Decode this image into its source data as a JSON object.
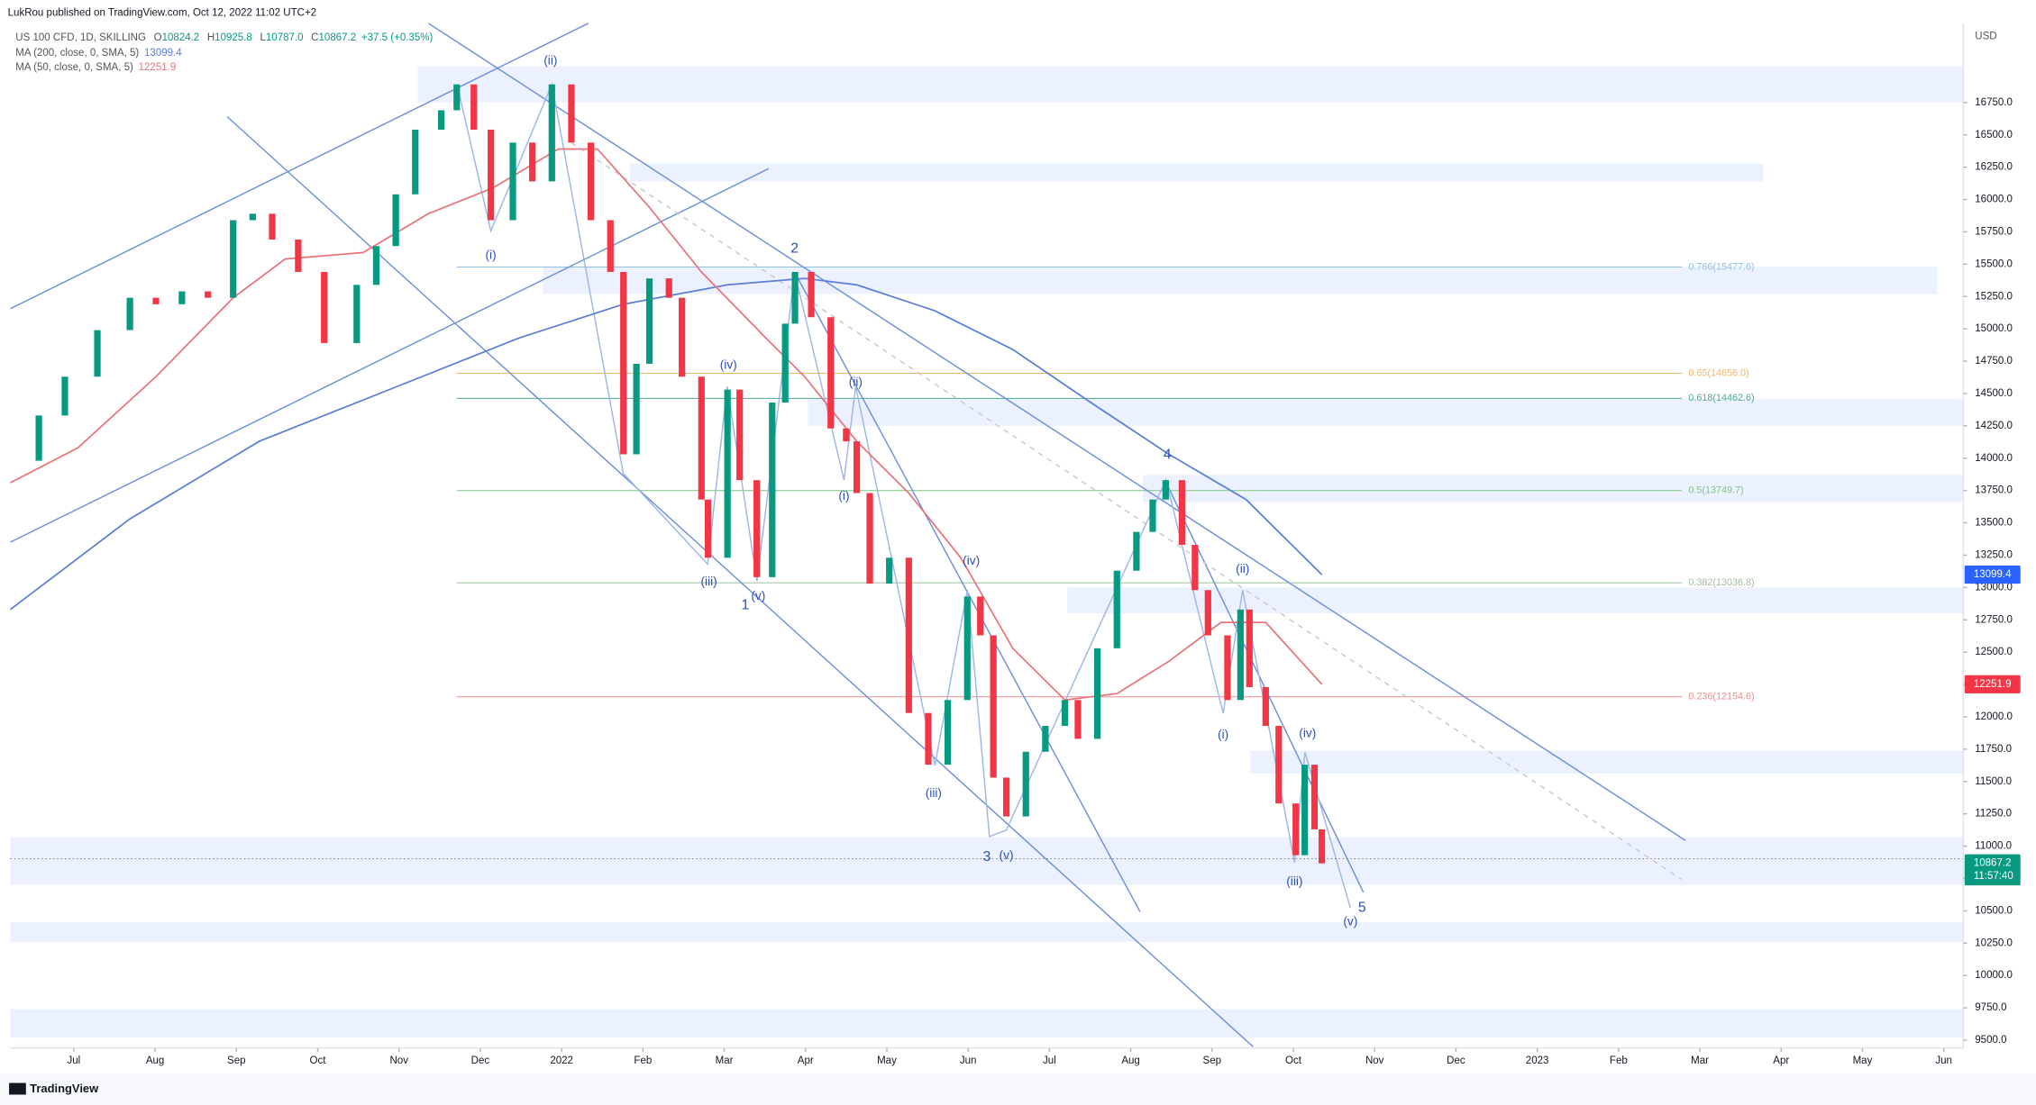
{
  "header": {
    "publisher": "LukRou published on TradingView.com, Oct 12, 2022 11:02 UTC+2",
    "currency": "USD",
    "brand": "TradingView"
  },
  "chart_data": {
    "type": "candlestick",
    "title": "US 100 CFD, 1D, SKILLING",
    "quote": [
      {
        "key": "O",
        "value": 10824.2
      },
      {
        "key": "H",
        "value": 10925.8
      },
      {
        "key": "L",
        "value": {
          "value": 10787,
          "label": "10787.0"
        }
      },
      {
        "key": "C",
        "value": 10867.2
      }
    ],
    "change": "+37.5 (+0.35%)",
    "up_color": "#089981",
    "down_color": "#f23645",
    "x": [
      -0.78,
      -0.43,
      -0.11,
      0.29,
      0.69,
      1.01,
      1.33,
      1.65,
      1.96,
      2.2,
      2.44,
      2.76,
      3.08,
      3.48,
      3.72,
      3.96,
      4.2,
      4.52,
      4.71,
      4.92,
      5.13,
      5.4,
      5.64,
      5.88,
      6.12,
      6.36,
      6.6,
      6.76,
      6.92,
      7.08,
      7.32,
      7.48,
      7.72,
      7.8,
      8.04,
      8.19,
      8.4,
      8.59,
      8.75,
      8.87,
      9.07,
      9.31,
      9.5,
      9.63,
      9.79,
      10.03,
      10.27,
      10.51,
      10.75,
      10.99,
      11.15,
      11.31,
      11.47,
      11.71,
      11.95,
      12.19,
      12.35,
      12.59,
      12.83,
      13.07,
      13.27,
      13.43,
      13.63,
      13.79,
      13.95,
      14.19,
      14.35,
      14.46,
      14.66,
      14.82,
      15.03,
      15.14,
      15.26,
      15.35
    ],
    "values": [
      13980,
      14330,
      14630,
      14990,
      15240,
      15190,
      15290,
      15240,
      15840,
      15890,
      15690,
      15440,
      14890,
      15340,
      15640,
      16040,
      16540,
      16690,
      16890,
      16540,
      15840,
      16440,
      16140,
      16890,
      16440,
      15840,
      15440,
      14030,
      14730,
      15390,
      15240,
      14630,
      13680,
      13230,
      14530,
      13830,
      13080,
      14430,
      15040,
      15440,
      15090,
      14230,
      14130,
      13730,
      13030,
      13230,
      12030,
      11630,
      12130,
      12930,
      12630,
      11530,
      11230,
      11730,
      11930,
      12130,
      11830,
      12530,
      13130,
      13430,
      13680,
      13830,
      13330,
      12980,
      12630,
      12130,
      12830,
      12230,
      11930,
      11330,
      10930,
      11630,
      11130,
      10867.2
    ],
    "series": [
      {
        "name": "MA (200, close, 0, SMA, 5)",
        "color": "#5b7fd6",
        "x": [
          -0.78,
          0.69,
          2.28,
          3.88,
          5.48,
          6.76,
          8.04,
          8.99,
          9.63,
          10.59,
          11.55,
          12.51,
          13.47,
          14.42,
          15.35
        ],
        "values": [
          12830,
          13530,
          14130,
          14530,
          14930,
          15190,
          15340,
          15390,
          15340,
          15140,
          14840,
          14430,
          14030,
          13680,
          13099.4
        ]
      },
      {
        "name": "MA (50, close, 0, SMA, 5)",
        "color": "#e8737a",
        "x": [
          -0.78,
          0.05,
          1.01,
          1.96,
          2.6,
          3.56,
          4.36,
          5.16,
          5.96,
          6.44,
          7.08,
          7.72,
          8.51,
          8.99,
          9.63,
          10.27,
          10.91,
          11.55,
          12.19,
          12.83,
          13.47,
          14.11,
          14.66,
          15.35
        ],
        "values": [
          13810,
          14080,
          14630,
          15240,
          15540,
          15590,
          15890,
          16090,
          16390,
          16390,
          15940,
          15440,
          14930,
          14630,
          14130,
          13730,
          13230,
          12530,
          12130,
          12180,
          12430,
          12730,
          12730,
          12251.9
        ]
      }
    ],
    "price_tags": [
      {
        "value": 13099.4,
        "color": "#2962ff"
      },
      {
        "value": 12251.9,
        "color": "#f23645"
      },
      {
        "value": 10867.2,
        "color": "#089981",
        "countdown": "11:57:40"
      }
    ],
    "zones": [
      {
        "x": [
          4.23,
          23.24
        ],
        "range": [
          16750,
          17030
        ]
      },
      {
        "x": [
          6.84,
          20.78
        ],
        "range": [
          16140,
          16280
        ]
      },
      {
        "x": [
          5.77,
          22.92
        ],
        "range": [
          15270,
          15480
        ]
      },
      {
        "x": [
          9.03,
          23.24
        ],
        "range": [
          14250,
          14460
        ]
      },
      {
        "x": [
          13.15,
          23.24
        ],
        "range": [
          13660,
          13870
        ]
      },
      {
        "x": [
          12.22,
          23.24
        ],
        "range": [
          12800,
          13000
        ]
      },
      {
        "x": [
          14.47,
          23.24
        ],
        "range": [
          11560,
          11740
        ]
      },
      {
        "x": [
          -0.78,
          23.24
        ],
        "range": [
          10700,
          11070
        ]
      },
      {
        "x": [
          -0.78,
          23.24
        ],
        "range": [
          10260,
          10410
        ]
      },
      {
        "x": [
          -0.78,
          23.24
        ],
        "range": [
          9520,
          9740
        ]
      }
    ],
    "fib": {
      "x": [
        4.71,
        19.78
      ],
      "levels": [
        {
          "label": "0.786(15477.6)",
          "value": 15477.6,
          "color": "#90bfe8"
        },
        {
          "label": "0.65(14656.0)",
          "value": 14656,
          "color": "#f5b560"
        },
        {
          "label": "0.618(14462.6)",
          "value": 14462.6,
          "color": "#4fa89a"
        },
        {
          "label": "0.5(13749.7)",
          "value": 13749.7,
          "color": "#7fc47f"
        },
        {
          "label": "0.382(13036.8)",
          "value": 13036.8,
          "color": "#9cbf9c"
        },
        {
          "label": "0.236(12154.6)",
          "value": 12154.6,
          "color": "#f08a8a"
        }
      ]
    },
    "annotations": [
      "(ii)",
      "(i)",
      "2",
      "(iv)",
      "(ii)",
      "(i)",
      "(iii)",
      "(v)",
      "1",
      "(iv)",
      "(iii)",
      "3",
      "(v)",
      "4",
      "(ii)",
      "(i)",
      "(iv)",
      "(iii)",
      "5",
      "(v)"
    ],
    "xlim": [
      -0.78,
      23.24
    ],
    "xticks": [
      {
        "value": 0,
        "label": "Jul"
      },
      {
        "value": 1,
        "label": "Aug"
      },
      {
        "value": 2,
        "label": "Sep"
      },
      {
        "value": 3,
        "label": "Oct"
      },
      {
        "value": 4,
        "label": "Nov"
      },
      {
        "value": 5,
        "label": "Dec"
      },
      {
        "value": 6,
        "label": "2022"
      },
      {
        "value": 7,
        "label": "Feb"
      },
      {
        "value": 8,
        "label": "Mar"
      },
      {
        "value": 9,
        "label": "Apr"
      },
      {
        "value": 10,
        "label": "May"
      },
      {
        "value": 11,
        "label": "Jun"
      },
      {
        "value": 12,
        "label": "Jul"
      },
      {
        "value": 13,
        "label": "Aug"
      },
      {
        "value": 14,
        "label": "Sep"
      },
      {
        "value": 15,
        "label": "Oct"
      },
      {
        "value": 16,
        "label": "Nov"
      },
      {
        "value": 17,
        "label": "Dec"
      },
      {
        "value": 18,
        "label": "2023"
      },
      {
        "value": 19,
        "label": "Feb"
      },
      {
        "value": 20,
        "label": "Mar"
      },
      {
        "value": 21,
        "label": "Apr"
      },
      {
        "value": 22,
        "label": "May"
      },
      {
        "value": 23,
        "label": "Jun"
      }
    ],
    "ylim": [
      9440,
      17362
    ],
    "yticks": [
      {
        "value": 9500,
        "label": "9500.0"
      },
      {
        "value": 9750,
        "label": "9750.0"
      },
      {
        "value": 10000,
        "label": "10000.0"
      },
      {
        "value": 10250,
        "label": "10250.0"
      },
      {
        "value": 10500,
        "label": "10500.0"
      },
      {
        "value": 10750,
        "label": "10750.0"
      },
      {
        "value": 11000,
        "label": "11000.0"
      },
      {
        "value": 11250,
        "label": "11250.0"
      },
      {
        "value": 11500,
        "label": "11500.0"
      },
      {
        "value": 11750,
        "label": "11750.0"
      },
      {
        "value": 12000,
        "label": "12000.0"
      },
      {
        "value": 12250,
        "label": "12250.0"
      },
      {
        "value": 12500,
        "label": "12500.0"
      },
      {
        "value": 12750,
        "label": "12750.0"
      },
      {
        "value": 13000,
        "label": "13000.0"
      },
      {
        "value": 13250,
        "label": "13250.0"
      },
      {
        "value": 13500,
        "label": "13500.0"
      },
      {
        "value": 13750,
        "label": "13750.0"
      },
      {
        "value": 14000,
        "label": "14000.0"
      },
      {
        "value": 14250,
        "label": "14250.0"
      },
      {
        "value": 14500,
        "label": "14500.0"
      },
      {
        "value": 14750,
        "label": "14750.0"
      },
      {
        "value": 15000,
        "label": "15000.0"
      },
      {
        "value": 15250,
        "label": "15250.0"
      },
      {
        "value": 15500,
        "label": "15500.0"
      },
      {
        "value": 15750,
        "label": "15750.0"
      },
      {
        "value": 16000,
        "label": "16000.0"
      },
      {
        "value": 16250,
        "label": "16250.0"
      },
      {
        "value": 16500,
        "label": "16500.0"
      },
      {
        "value": 16750,
        "label": "16750.0"
      }
    ],
    "grid": false
  }
}
